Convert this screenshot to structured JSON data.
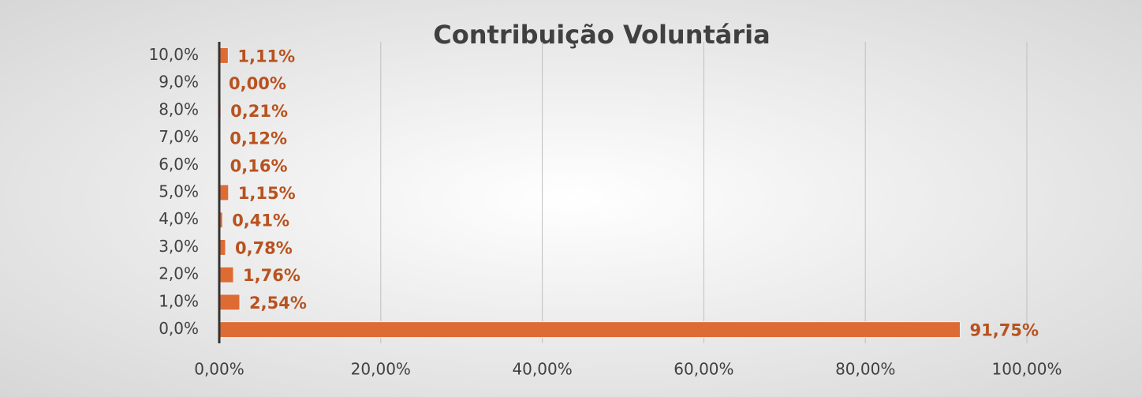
{
  "chart_data": {
    "type": "bar",
    "orientation": "horizontal",
    "title": "Contribuição Voluntária",
    "categories": [
      "0,0%",
      "1,0%",
      "2,0%",
      "3,0%",
      "4,0%",
      "5,0%",
      "6,0%",
      "7,0%",
      "8,0%",
      "9,0%",
      "10,0%"
    ],
    "values": [
      91.75,
      2.54,
      1.76,
      0.78,
      0.41,
      1.15,
      0.16,
      0.12,
      0.21,
      0.0,
      1.11
    ],
    "value_labels": [
      "91,75%",
      "2,54%",
      "1,76%",
      "0,78%",
      "0,41%",
      "1,15%",
      "0,16%",
      "0,12%",
      "0,21%",
      "0,00%",
      "1,11%"
    ],
    "color": "#de6b34",
    "xlim": [
      0,
      100
    ],
    "xticks": [
      {
        "value": 0,
        "label": "0,00%"
      },
      {
        "value": 20,
        "label": "20,00%"
      },
      {
        "value": 40,
        "label": "40,00%"
      },
      {
        "value": 60,
        "label": "60,00%"
      },
      {
        "value": 80,
        "label": "80,00%"
      },
      {
        "value": 100,
        "label": "100,00%"
      }
    ],
    "grid": true
  }
}
